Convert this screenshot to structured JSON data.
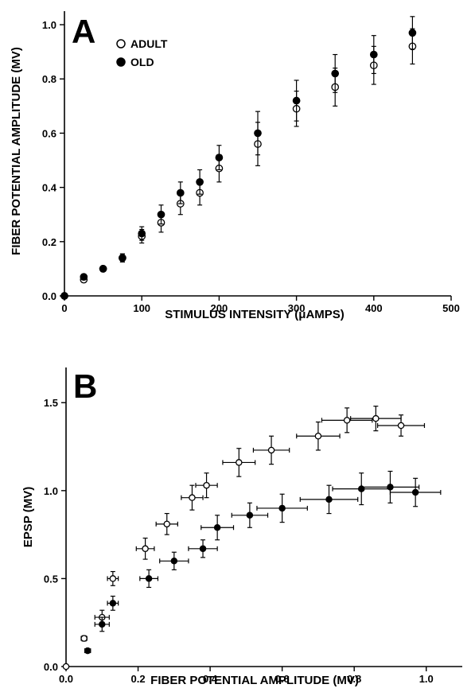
{
  "chart_data": [
    {
      "type": "scatter",
      "panel_label": "A",
      "title": "",
      "xlabel": "STIMULUS INTENSITY  (μAMPS)",
      "ylabel": "FIBER POTENTIAL AMPLITUDE (MV)",
      "xlim": [
        0,
        500
      ],
      "ylim": [
        0,
        1.05
      ],
      "x_ticks": [
        0,
        100,
        200,
        300,
        400,
        500
      ],
      "x_tick_labels": [
        "0",
        "100",
        "200",
        "300",
        "400",
        "500"
      ],
      "y_ticks": [
        0,
        0.2,
        0.4,
        0.6,
        0.8,
        1.0
      ],
      "y_tick_labels": [
        "0.0",
        "0.2",
        "0.4",
        "0.6",
        "0.8",
        "1.0"
      ],
      "legend_position": "top-left",
      "series": [
        {
          "name": "ADULT",
          "marker": "open-circle",
          "points": [
            {
              "x": 0,
              "y": 0.0,
              "yerr": 0.0
            },
            {
              "x": 25,
              "y": 0.06,
              "yerr": 0.01
            },
            {
              "x": 50,
              "y": 0.1,
              "yerr": 0.008
            },
            {
              "x": 75,
              "y": 0.14,
              "yerr": 0.015
            },
            {
              "x": 100,
              "y": 0.22,
              "yerr": 0.025
            },
            {
              "x": 125,
              "y": 0.27,
              "yerr": 0.035
            },
            {
              "x": 150,
              "y": 0.34,
              "yerr": 0.04
            },
            {
              "x": 175,
              "y": 0.38,
              "yerr": 0.045
            },
            {
              "x": 200,
              "y": 0.47,
              "yerr": 0.05
            },
            {
              "x": 250,
              "y": 0.56,
              "yerr": 0.08
            },
            {
              "x": 300,
              "y": 0.69,
              "yerr": 0.065
            },
            {
              "x": 350,
              "y": 0.77,
              "yerr": 0.07
            },
            {
              "x": 400,
              "y": 0.85,
              "yerr": 0.07
            },
            {
              "x": 450,
              "y": 0.92,
              "yerr": 0.065
            }
          ]
        },
        {
          "name": "OLD",
          "marker": "filled-circle",
          "points": [
            {
              "x": 0,
              "y": 0.0,
              "yerr": 0.0
            },
            {
              "x": 25,
              "y": 0.07,
              "yerr": 0.01
            },
            {
              "x": 50,
              "y": 0.1,
              "yerr": 0.008
            },
            {
              "x": 75,
              "y": 0.14,
              "yerr": 0.015
            },
            {
              "x": 100,
              "y": 0.23,
              "yerr": 0.025
            },
            {
              "x": 125,
              "y": 0.3,
              "yerr": 0.035
            },
            {
              "x": 150,
              "y": 0.38,
              "yerr": 0.04
            },
            {
              "x": 175,
              "y": 0.42,
              "yerr": 0.045
            },
            {
              "x": 200,
              "y": 0.51,
              "yerr": 0.045
            },
            {
              "x": 250,
              "y": 0.6,
              "yerr": 0.08
            },
            {
              "x": 300,
              "y": 0.72,
              "yerr": 0.075
            },
            {
              "x": 350,
              "y": 0.82,
              "yerr": 0.07
            },
            {
              "x": 400,
              "y": 0.89,
              "yerr": 0.07
            },
            {
              "x": 450,
              "y": 0.97,
              "yerr": 0.06
            }
          ]
        }
      ]
    },
    {
      "type": "scatter",
      "panel_label": "B",
      "title": "",
      "xlabel": "FIBER POTENTIAL AMPLITUDE (MV)",
      "ylabel": "EPSP (MV)",
      "xlim": [
        0,
        1.1
      ],
      "ylim": [
        0,
        1.7
      ],
      "x_ticks": [
        0,
        0.2,
        0.4,
        0.6,
        0.8,
        1.0
      ],
      "x_tick_labels": [
        "0.0",
        "0.2",
        "0.4",
        "0.6",
        "0.8",
        "1.0"
      ],
      "y_ticks": [
        0,
        0.5,
        1.0,
        1.5
      ],
      "y_tick_labels": [
        "0.0",
        "0.5",
        "1.0",
        "1.5"
      ],
      "series": [
        {
          "name": "ADULT",
          "marker": "open-circle",
          "points": [
            {
              "x": 0.0,
              "y": 0.0,
              "xerr": 0.0,
              "yerr": 0.0
            },
            {
              "x": 0.05,
              "y": 0.16,
              "xerr": 0.008,
              "yerr": 0.015
            },
            {
              "x": 0.1,
              "y": 0.28,
              "xerr": 0.02,
              "yerr": 0.04
            },
            {
              "x": 0.13,
              "y": 0.5,
              "xerr": 0.015,
              "yerr": 0.04
            },
            {
              "x": 0.22,
              "y": 0.67,
              "xerr": 0.025,
              "yerr": 0.06
            },
            {
              "x": 0.28,
              "y": 0.81,
              "xerr": 0.03,
              "yerr": 0.06
            },
            {
              "x": 0.35,
              "y": 0.96,
              "xerr": 0.03,
              "yerr": 0.07
            },
            {
              "x": 0.39,
              "y": 1.03,
              "xerr": 0.03,
              "yerr": 0.07
            },
            {
              "x": 0.48,
              "y": 1.16,
              "xerr": 0.045,
              "yerr": 0.08
            },
            {
              "x": 0.57,
              "y": 1.23,
              "xerr": 0.05,
              "yerr": 0.08
            },
            {
              "x": 0.7,
              "y": 1.31,
              "xerr": 0.06,
              "yerr": 0.08
            },
            {
              "x": 0.78,
              "y": 1.4,
              "xerr": 0.07,
              "yerr": 0.07
            },
            {
              "x": 0.86,
              "y": 1.41,
              "xerr": 0.07,
              "yerr": 0.07
            },
            {
              "x": 0.93,
              "y": 1.37,
              "xerr": 0.065,
              "yerr": 0.06
            }
          ]
        },
        {
          "name": "OLD",
          "marker": "filled-circle",
          "points": [
            {
              "x": 0.06,
              "y": 0.09,
              "xerr": 0.008,
              "yerr": 0.01
            },
            {
              "x": 0.1,
              "y": 0.24,
              "xerr": 0.02,
              "yerr": 0.04
            },
            {
              "x": 0.13,
              "y": 0.36,
              "xerr": 0.015,
              "yerr": 0.04
            },
            {
              "x": 0.23,
              "y": 0.5,
              "xerr": 0.025,
              "yerr": 0.05
            },
            {
              "x": 0.3,
              "y": 0.6,
              "xerr": 0.04,
              "yerr": 0.05
            },
            {
              "x": 0.38,
              "y": 0.67,
              "xerr": 0.04,
              "yerr": 0.05
            },
            {
              "x": 0.42,
              "y": 0.79,
              "xerr": 0.045,
              "yerr": 0.07
            },
            {
              "x": 0.51,
              "y": 0.86,
              "xerr": 0.05,
              "yerr": 0.07
            },
            {
              "x": 0.6,
              "y": 0.9,
              "xerr": 0.07,
              "yerr": 0.08
            },
            {
              "x": 0.73,
              "y": 0.95,
              "xerr": 0.08,
              "yerr": 0.08
            },
            {
              "x": 0.82,
              "y": 1.01,
              "xerr": 0.08,
              "yerr": 0.09
            },
            {
              "x": 0.9,
              "y": 1.02,
              "xerr": 0.08,
              "yerr": 0.09
            },
            {
              "x": 0.97,
              "y": 0.99,
              "xerr": 0.07,
              "yerr": 0.08
            }
          ]
        }
      ]
    }
  ]
}
